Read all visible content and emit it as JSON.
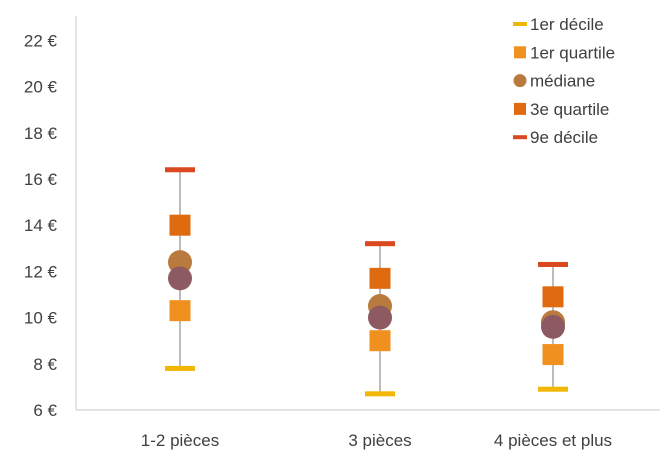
{
  "chart_data": {
    "type": "scatter",
    "title": "",
    "xlabel": "",
    "ylabel": "",
    "categories": [
      "1-2 pièces",
      "3 pièces",
      "4 pièces et plus"
    ],
    "ylim": [
      6,
      23
    ],
    "yticks": [
      6,
      8,
      10,
      12,
      14,
      16,
      18,
      20,
      22
    ],
    "ytick_labels": [
      "6 €",
      "8 €",
      "10 €",
      "12 €",
      "14 €",
      "16 €",
      "18 €",
      "20 €",
      "22 €"
    ],
    "legend_position": "top-right",
    "grid": false,
    "whiskers": {
      "low": [
        7.8,
        6.7,
        6.9
      ],
      "high": [
        16.4,
        13.2,
        12.3
      ]
    },
    "series": [
      {
        "name": "1er décile",
        "marker": "dash",
        "color": "#F2B705",
        "values": [
          7.8,
          6.7,
          6.9
        ]
      },
      {
        "name": "1er quartile",
        "marker": "square",
        "color": "#F0901E",
        "values": [
          10.3,
          9.0,
          8.4
        ]
      },
      {
        "name": "médiane",
        "marker": "circle",
        "color": "#B87A3D",
        "values": [
          12.4,
          10.5,
          9.8
        ]
      },
      {
        "name": "3e quartile",
        "marker": "square",
        "color": "#E06A10",
        "values": [
          14.0,
          11.7,
          10.9
        ]
      },
      {
        "name": "9e décile",
        "marker": "dash",
        "color": "#D9481E",
        "values": [
          16.4,
          13.2,
          12.3
        ]
      }
    ],
    "extra_points": {
      "marker": "circle",
      "color": "#8E5A61",
      "values": [
        11.7,
        10.0,
        9.6
      ]
    }
  }
}
